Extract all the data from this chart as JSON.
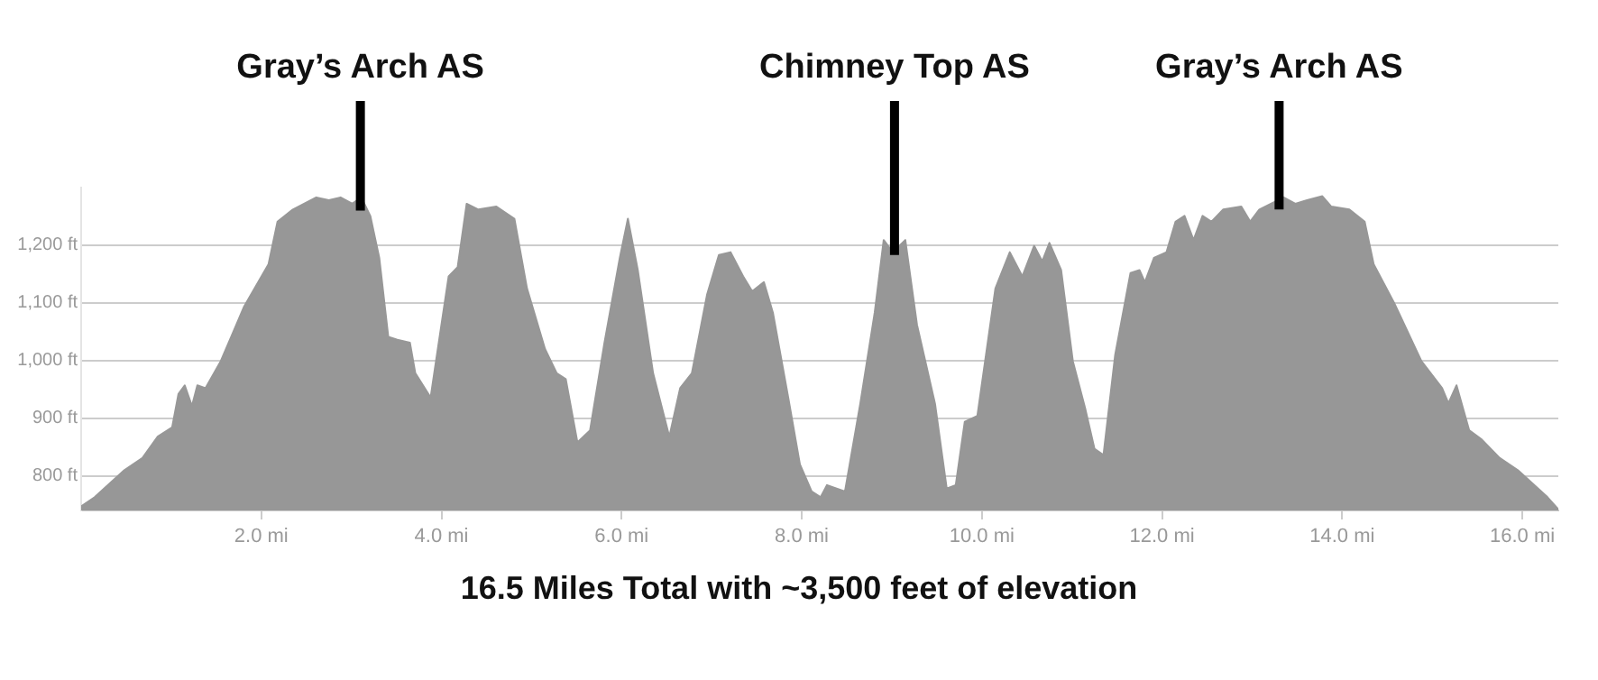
{
  "chart_data": {
    "type": "area",
    "x": [
      0,
      0.15,
      0.48,
      0.68,
      0.85,
      1.01,
      1.08,
      1.15,
      1.23,
      1.29,
      1.38,
      1.55,
      1.81,
      2.08,
      2.18,
      2.35,
      2.61,
      2.75,
      2.88,
      3.01,
      3.11,
      3.21,
      3.31,
      3.41,
      3.51,
      3.65,
      3.71,
      3.88,
      3.95,
      4.08,
      4.18,
      4.28,
      4.41,
      4.61,
      4.81,
      4.95,
      5.15,
      5.28,
      5.38,
      5.51,
      5.65,
      5.81,
      5.98,
      6.07,
      6.18,
      6.35,
      6.53,
      6.65,
      6.78,
      6.95,
      7.08,
      7.21,
      7.35,
      7.45,
      7.58,
      7.68,
      7.85,
      7.98,
      8.11,
      8.21,
      8.28,
      8.48,
      8.65,
      8.81,
      8.91,
      9.01,
      9.15,
      9.28,
      9.48,
      9.61,
      9.71,
      9.81,
      9.95,
      10.15,
      10.31,
      10.45,
      10.58,
      10.67,
      10.75,
      10.88,
      11.01,
      11.15,
      11.25,
      11.35,
      11.48,
      11.65,
      11.75,
      11.81,
      11.91,
      12.05,
      12.15,
      12.25,
      12.35,
      12.45,
      12.55,
      12.68,
      12.88,
      12.98,
      13.08,
      13.21,
      13.35,
      13.48,
      13.61,
      13.78,
      13.88,
      14.08,
      14.25,
      14.35,
      14.58,
      14.88,
      15.11,
      15.18,
      15.27,
      15.41,
      15.55,
      15.75,
      15.95,
      16.28,
      16.4
    ],
    "series": [
      {
        "color": "#979797",
        "values": [
          747,
          763,
          810,
          831,
          868,
          884,
          942,
          957,
          921,
          957,
          952,
          999,
          1094,
          1167,
          1241,
          1262,
          1283,
          1278,
          1283,
          1272,
          1283,
          1251,
          1178,
          1041,
          1036,
          1031,
          978,
          936,
          1010,
          1146,
          1162,
          1272,
          1262,
          1267,
          1246,
          1125,
          1020,
          978,
          968,
          858,
          879,
          1031,
          1178,
          1246,
          1157,
          978,
          868,
          952,
          978,
          1115,
          1183,
          1188,
          1146,
          1120,
          1136,
          1083,
          936,
          820,
          773,
          763,
          784,
          773,
          925,
          1083,
          1209,
          1188,
          1209,
          1062,
          925,
          778,
          784,
          894,
          904,
          1125,
          1188,
          1146,
          1199,
          1172,
          1204,
          1157,
          999,
          915,
          847,
          836,
          1010,
          1152,
          1157,
          1136,
          1178,
          1188,
          1241,
          1251,
          1209,
          1251,
          1241,
          1262,
          1267,
          1241,
          1262,
          1272,
          1283,
          1272,
          1278,
          1285,
          1267,
          1262,
          1241,
          1167,
          1099,
          999,
          952,
          926,
          957,
          879,
          863,
          831,
          810,
          763,
          742
        ]
      }
    ],
    "xlim": [
      0,
      16.4
    ],
    "xticks": [
      {
        "value": 2,
        "label": "2.0 mi"
      },
      {
        "value": 4,
        "label": "4.0 mi"
      },
      {
        "value": 6,
        "label": "6.0 mi"
      },
      {
        "value": 8,
        "label": "8.0 mi"
      },
      {
        "value": 10,
        "label": "10.0 mi"
      },
      {
        "value": 12,
        "label": "12.0 mi"
      },
      {
        "value": 14,
        "label": "14.0 mi"
      },
      {
        "value": 16,
        "label": "16.0 mi"
      }
    ],
    "ylim": [
      740,
      1300
    ],
    "yticks": [
      {
        "value": 800,
        "label": "800 ft"
      },
      {
        "value": 900,
        "label": "900 ft"
      },
      {
        "value": 1000,
        "label": "1,000 ft"
      },
      {
        "value": 1100,
        "label": "1,100 ft"
      },
      {
        "value": 1200,
        "label": "1,200 ft"
      }
    ],
    "grid": "y",
    "marker": "none",
    "annotations": [
      {
        "text": "Gray’s Arch AS",
        "x": 3.1,
        "y": 1260
      },
      {
        "text": "Chimney Top AS",
        "x": 9.03,
        "y": 1183
      },
      {
        "text": "Gray’s Arch AS",
        "x": 13.3,
        "y": 1262
      },
      "16.5 Miles Total with ~3,500 feet of elevation"
    ]
  }
}
